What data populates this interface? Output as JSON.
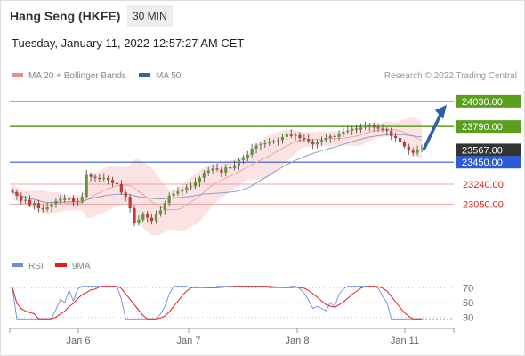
{
  "header": {
    "title": "Hang Seng (HKFE)",
    "timeframe": "30 MIN",
    "datetime": "Tuesday, January 11, 2022 12:57:27 AM CET"
  },
  "legend": {
    "items": [
      {
        "label": "MA 20 + Bollinger Bands",
        "color": "#f08a8a"
      },
      {
        "label": "MA 50",
        "color": "#3a5f9e"
      }
    ],
    "copyright": "Research © 2022 Trading Central"
  },
  "rsi_legend": {
    "items": [
      {
        "label": "RSI",
        "color": "#6a8fd8"
      },
      {
        "label": "9MA",
        "color": "#e02020"
      }
    ]
  },
  "colors": {
    "resistance": "#5aa01e",
    "pivot": "#2c5bd8",
    "support": "#f0a0a0",
    "current": "#333333",
    "arrow": "#2f5ea8",
    "bull": "#5a9a3a",
    "bear": "#c03a3a",
    "band": "#fbe3e3",
    "ma20": "#f3a2a2",
    "ma50": "#8d9fc4",
    "rsi": "#6a8fd8",
    "rsi_ma": "#e02020"
  },
  "chart_data": {
    "type": "candlestick",
    "price_min": 22620,
    "price_max": 24190,
    "x_labels": [
      "Jan 6",
      "Jan 7",
      "Jan 8",
      "Jan 11"
    ],
    "closes": [
      23165,
      23130,
      23080,
      23090,
      23040,
      23060,
      23010,
      23000,
      23020,
      23050,
      23080,
      23100,
      23090,
      23110,
      23070,
      23080,
      23120,
      23330,
      23310,
      23300,
      23290,
      23300,
      23280,
      23250,
      23240,
      23160,
      23120,
      23010,
      22870,
      22900,
      22960,
      22920,
      22890,
      22950,
      22990,
      23060,
      23130,
      23150,
      23170,
      23190,
      23210,
      23220,
      23260,
      23300,
      23350,
      23370,
      23390,
      23380,
      23350,
      23400,
      23390,
      23420,
      23470,
      23490,
      23520,
      23580,
      23610,
      23620,
      23630,
      23640,
      23650,
      23660,
      23690,
      23720,
      23700,
      23710,
      23680,
      23670,
      23650,
      23620,
      23640,
      23660,
      23680,
      23700,
      23690,
      23720,
      23740,
      23750,
      23770,
      23760,
      23780,
      23790,
      23800,
      23780,
      23770,
      23760,
      23750,
      23700,
      23680,
      23640,
      23600,
      23560,
      23540,
      23570,
      23567
    ],
    "ohlc_note": "derived wicks",
    "levels": [
      {
        "value": 24030,
        "label": "24030.00",
        "kind": "resistance"
      },
      {
        "value": 23790,
        "label": "23790.00",
        "kind": "resistance"
      },
      {
        "value": 23567,
        "label": "23567.00",
        "kind": "current"
      },
      {
        "value": 23450,
        "label": "23450.00",
        "kind": "pivot"
      },
      {
        "value": 23240,
        "label": "23240.00",
        "kind": "support"
      },
      {
        "value": 23050,
        "label": "23050.00",
        "kind": "support"
      }
    ],
    "rsi": {
      "ticks": [
        70,
        50,
        30
      ],
      "range": [
        20,
        80
      ]
    }
  }
}
